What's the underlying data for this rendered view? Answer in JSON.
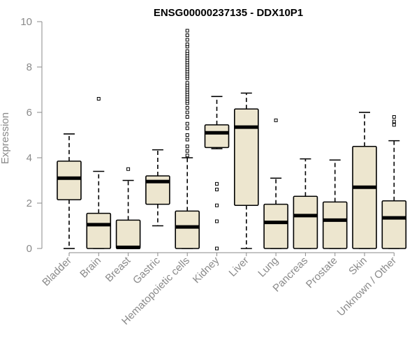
{
  "chart_data": {
    "type": "box",
    "title": "ENSG00000237135 - DDX10P1",
    "ylabel": "Expression",
    "xlabel": "",
    "ylim": [
      0,
      10
    ],
    "y_ticks": [
      "0",
      "2",
      "4",
      "6",
      "8",
      "10"
    ],
    "grid": false,
    "box_fill": "#ede6cf",
    "categories": [
      "Bladder",
      "Brain",
      "Breast",
      "Gastric",
      "Hematopoietic cells",
      "Kidney",
      "Liver",
      "Lung",
      "Pancreas",
      "Prostate",
      "Skin",
      "Unknown / Other"
    ],
    "boxes": [
      {
        "min": 0.0,
        "q1": 2.15,
        "median": 3.1,
        "q3": 3.85,
        "max": 5.05,
        "outliers": []
      },
      {
        "min": 0.0,
        "q1": 0.0,
        "median": 1.05,
        "q3": 1.55,
        "max": 3.4,
        "outliers": [
          6.6
        ]
      },
      {
        "min": 0.0,
        "q1": 0.0,
        "median": 0.05,
        "q3": 1.25,
        "max": 3.0,
        "outliers": [
          3.5
        ]
      },
      {
        "min": 1.0,
        "q1": 1.95,
        "median": 2.95,
        "q3": 3.2,
        "max": 4.35,
        "outliers": []
      },
      {
        "min": 0.0,
        "q1": 0.0,
        "median": 0.95,
        "q3": 1.65,
        "max": 4.0,
        "outliers": [
          4.1,
          4.3,
          4.5,
          4.8,
          5.0,
          5.3,
          5.5,
          5.8,
          6.0,
          6.2,
          6.4,
          6.5,
          6.6,
          6.7,
          6.8,
          6.9,
          7.0,
          7.1,
          7.2,
          7.3,
          7.5,
          7.6,
          7.7,
          7.8,
          7.9,
          8.0,
          8.1,
          8.2,
          8.3,
          8.4,
          8.5,
          8.6,
          8.7,
          8.9,
          9.0,
          9.2,
          9.4,
          9.6
        ]
      },
      {
        "min": 4.4,
        "q1": 4.45,
        "median": 5.1,
        "q3": 5.45,
        "max": 6.7,
        "outliers": [
          2.85,
          2.6,
          1.9,
          1.2,
          0.0
        ]
      },
      {
        "min": 0.0,
        "q1": 1.9,
        "median": 5.35,
        "q3": 6.15,
        "max": 6.85,
        "outliers": []
      },
      {
        "min": 0.0,
        "q1": 0.0,
        "median": 1.15,
        "q3": 1.95,
        "max": 3.1,
        "outliers": [
          5.65
        ]
      },
      {
        "min": 0.0,
        "q1": 0.0,
        "median": 1.45,
        "q3": 2.3,
        "max": 3.95,
        "outliers": []
      },
      {
        "min": 0.0,
        "q1": 0.0,
        "median": 1.25,
        "q3": 2.05,
        "max": 3.9,
        "outliers": []
      },
      {
        "min": 0.0,
        "q1": 0.0,
        "median": 2.7,
        "q3": 4.5,
        "max": 6.0,
        "outliers": []
      },
      {
        "min": 0.0,
        "q1": 0.0,
        "median": 1.35,
        "q3": 2.1,
        "max": 4.75,
        "outliers": [
          5.45,
          5.6,
          5.8
        ]
      }
    ]
  }
}
